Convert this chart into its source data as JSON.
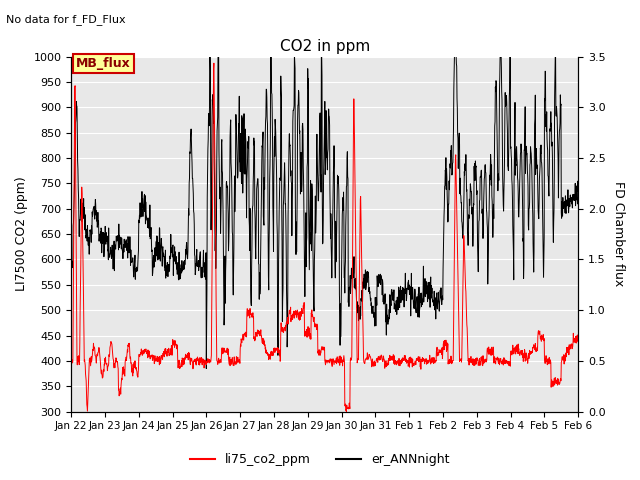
{
  "title": "CO2 in ppm",
  "no_data_text": "No data for f_FD_Flux",
  "ylabel_left": "LI7500 CO2 (ppm)",
  "ylabel_right": "FD Chamber flux",
  "ylim_left": [
    300,
    1000
  ],
  "ylim_right": [
    0.0,
    3.5
  ],
  "yticks_left": [
    300,
    350,
    400,
    450,
    500,
    550,
    600,
    650,
    700,
    750,
    800,
    850,
    900,
    950,
    1000
  ],
  "yticks_right": [
    0.0,
    0.5,
    1.0,
    1.5,
    2.0,
    2.5,
    3.0,
    3.5
  ],
  "xtick_labels": [
    "Jan 22",
    "Jan 23",
    "Jan 24",
    "Jan 25",
    "Jan 26",
    "Jan 27",
    "Jan 28",
    "Jan 29",
    "Jan 30",
    "Jan 31",
    "Feb 1",
    "Feb 2",
    "Feb 3",
    "Feb 4",
    "Feb 5",
    "Feb 6"
  ],
  "legend_box_text": "MB_flux",
  "legend_line1_label": "li75_co2_ppm",
  "legend_line2_label": "er_ANNnight",
  "line1_color": "#ff0000",
  "line2_color": "#000000",
  "bg_color": "#e8e8e8",
  "fig_bg_color": "#ffffff"
}
